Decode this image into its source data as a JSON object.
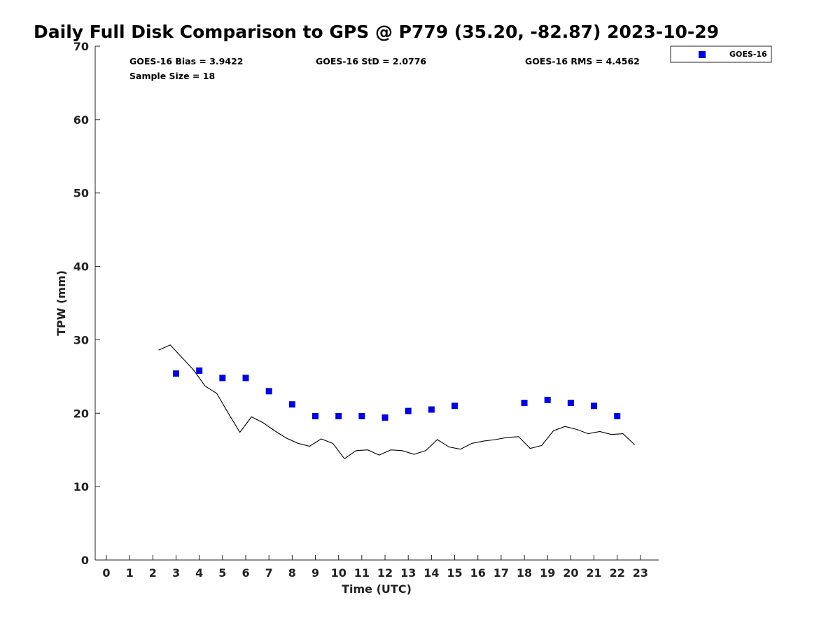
{
  "chart_data": {
    "type": "scatter",
    "title": "Daily Full Disk Comparison to GPS @ P779 (35.20, -82.87) 2023-10-29",
    "xlabel": "Time (UTC)",
    "ylabel": "TPW (mm)",
    "xlim": [
      -0.5,
      23.75
    ],
    "ylim": [
      0,
      70
    ],
    "x_ticks": [
      0,
      1,
      2,
      3,
      4,
      5,
      6,
      7,
      8,
      9,
      10,
      11,
      12,
      13,
      14,
      15,
      16,
      17,
      18,
      19,
      20,
      21,
      22,
      23
    ],
    "y_ticks": [
      0,
      10,
      20,
      30,
      40,
      50,
      60,
      70
    ],
    "grid": false,
    "legend_position": "top-right",
    "stats": {
      "bias": "GOES-16 Bias = 3.9422",
      "std": "GOES-16 StD = 2.0776",
      "rms": "GOES-16 RMS = 4.4562",
      "sample_size": "Sample Size = 18"
    },
    "series": [
      {
        "name": "GOES-16",
        "kind": "scatter",
        "marker": "square",
        "color": "#0000e6",
        "x": [
          3,
          4,
          5,
          6,
          7,
          8,
          9,
          10,
          11,
          12,
          13,
          14,
          15,
          18,
          19,
          20,
          21,
          22
        ],
        "y": [
          25.4,
          25.8,
          24.8,
          24.8,
          23.0,
          21.2,
          19.6,
          19.6,
          19.6,
          19.4,
          20.3,
          20.5,
          21.0,
          21.4,
          21.8,
          21.4,
          21.0,
          19.6
        ]
      },
      {
        "kind": "line",
        "color": "#000000",
        "x": [
          2.25,
          2.75,
          3.25,
          3.75,
          4.25,
          4.75,
          5.25,
          5.75,
          6.25,
          6.75,
          7.25,
          7.75,
          8.25,
          8.75,
          9.25,
          9.75,
          10.25,
          10.75,
          11.25,
          11.75,
          12.25,
          12.75,
          13.25,
          13.75,
          14.25,
          14.75,
          15.25,
          15.75,
          16.25,
          16.75,
          17.25,
          17.75,
          18.25,
          18.75,
          19.25,
          19.75,
          20.25,
          20.75,
          21.25,
          21.75,
          22.25,
          22.75
        ],
        "y": [
          28.6,
          29.3,
          27.6,
          25.9,
          23.7,
          22.7,
          20.0,
          17.4,
          19.5,
          18.7,
          17.6,
          16.6,
          15.9,
          15.5,
          16.5,
          15.9,
          13.8,
          14.9,
          15.0,
          14.3,
          15.0,
          14.9,
          14.4,
          14.9,
          16.4,
          15.4,
          15.1,
          15.9,
          16.2,
          16.4,
          16.7,
          16.8,
          15.2,
          15.6,
          17.6,
          18.2,
          17.8,
          17.2,
          17.5,
          17.1,
          17.2,
          15.7
        ]
      }
    ]
  }
}
